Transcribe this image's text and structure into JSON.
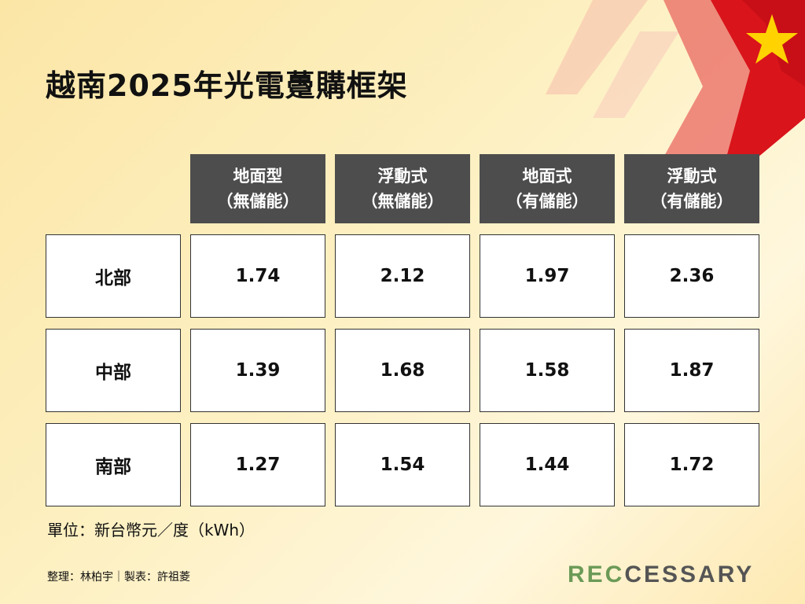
{
  "title": "越南2025年光電躉購框架",
  "headers": [
    {
      "line1": "地面型",
      "line2": "（無儲能）"
    },
    {
      "line1": "浮動式",
      "line2": "（無儲能）"
    },
    {
      "line1": "地面式",
      "line2": "（有儲能）"
    },
    {
      "line1": "浮動式",
      "line2": "（有儲能）"
    }
  ],
  "rows": [
    {
      "region": "北部",
      "values": [
        "1.74",
        "2.12",
        "1.97",
        "2.36"
      ]
    },
    {
      "region": "中部",
      "values": [
        "1.39",
        "1.68",
        "1.58",
        "1.87"
      ]
    },
    {
      "region": "南部",
      "values": [
        "1.27",
        "1.54",
        "1.44",
        "1.72"
      ]
    }
  ],
  "unit_note": "單位：新台幣元／度（kWh）",
  "credit": "整理：林柏宇｜製表：許祖菱",
  "logo": {
    "part1": "REC",
    "part2": "CESSARY"
  },
  "colors": {
    "header_bg": "#4d4d4d",
    "flag_red": "#d9141b",
    "flag_star": "#ffd200",
    "logo_green": "#6b9a57",
    "logo_gray": "#555555"
  }
}
